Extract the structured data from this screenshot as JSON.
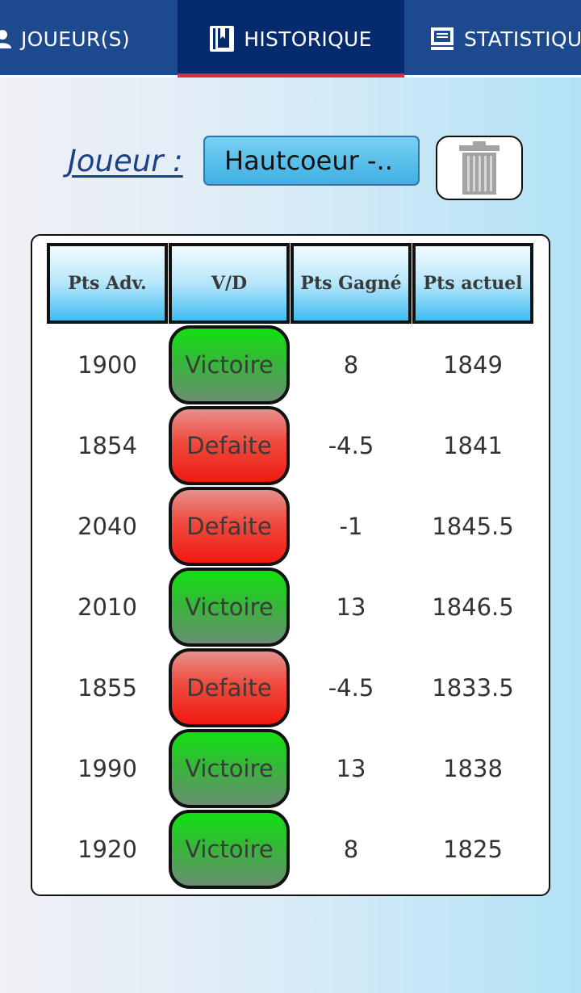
{
  "nav": {
    "tabs": [
      {
        "label": "JOUEUR(S)",
        "icon": "user-icon",
        "active": false
      },
      {
        "label": "HISTORIQUE",
        "icon": "book-icon",
        "active": true
      },
      {
        "label": "STATISTIQUES",
        "icon": "monitor-icon",
        "active": false
      }
    ],
    "colors": {
      "bar": "#1d4a8f",
      "active": "#052a6e",
      "active_underline": "#e12b3a"
    }
  },
  "player": {
    "label": "Joueur :",
    "selected": "Hautcoeur  -..",
    "delete_icon": "trash-icon"
  },
  "table": {
    "headers": [
      "Pts Adv.",
      "V/D",
      "Pts Gagné",
      "Pts actuel"
    ],
    "rows": [
      {
        "opponent_points": "1900",
        "result": "Victoire",
        "points_won": "8",
        "current_points": "1849"
      },
      {
        "opponent_points": "1854",
        "result": "Defaite",
        "points_won": "-4.5",
        "current_points": "1841"
      },
      {
        "opponent_points": "2040",
        "result": "Defaite",
        "points_won": "-1",
        "current_points": "1845.5"
      },
      {
        "opponent_points": "2010",
        "result": "Victoire",
        "points_won": "13",
        "current_points": "1846.5"
      },
      {
        "opponent_points": "1855",
        "result": "Defaite",
        "points_won": "-4.5",
        "current_points": "1833.5"
      },
      {
        "opponent_points": "1990",
        "result": "Victoire",
        "points_won": "13",
        "current_points": "1838"
      },
      {
        "opponent_points": "1920",
        "result": "Victoire",
        "points_won": "8",
        "current_points": "1825"
      }
    ],
    "colors": {
      "win": "#2fc12f",
      "loss": "#f0281f",
      "header": "#3fbcf0"
    }
  }
}
